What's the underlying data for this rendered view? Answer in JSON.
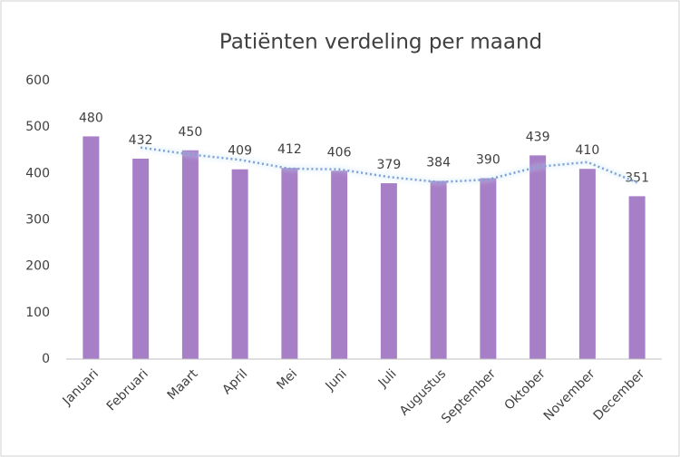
{
  "chart_data": {
    "type": "bar",
    "title": "Patiënten verdeling per maand",
    "categories": [
      "Januari",
      "Februari",
      "Maart",
      "April",
      "Mei",
      "Juni",
      "Juli",
      "Augustus",
      "September",
      "Oktober",
      "November",
      "December"
    ],
    "values": [
      480,
      432,
      450,
      409,
      412,
      406,
      379,
      384,
      390,
      439,
      410,
      351
    ],
    "color": "#a77fc7",
    "trend": {
      "color": "#7f9fd6",
      "values": [
        null,
        456,
        441,
        429.5,
        410.5,
        409,
        392.5,
        381.5,
        387,
        414.5,
        424.5,
        380.5
      ]
    },
    "ylim": [
      0,
      600
    ],
    "yticks": [
      0,
      100,
      200,
      300,
      400,
      500,
      600
    ],
    "grid": false
  }
}
